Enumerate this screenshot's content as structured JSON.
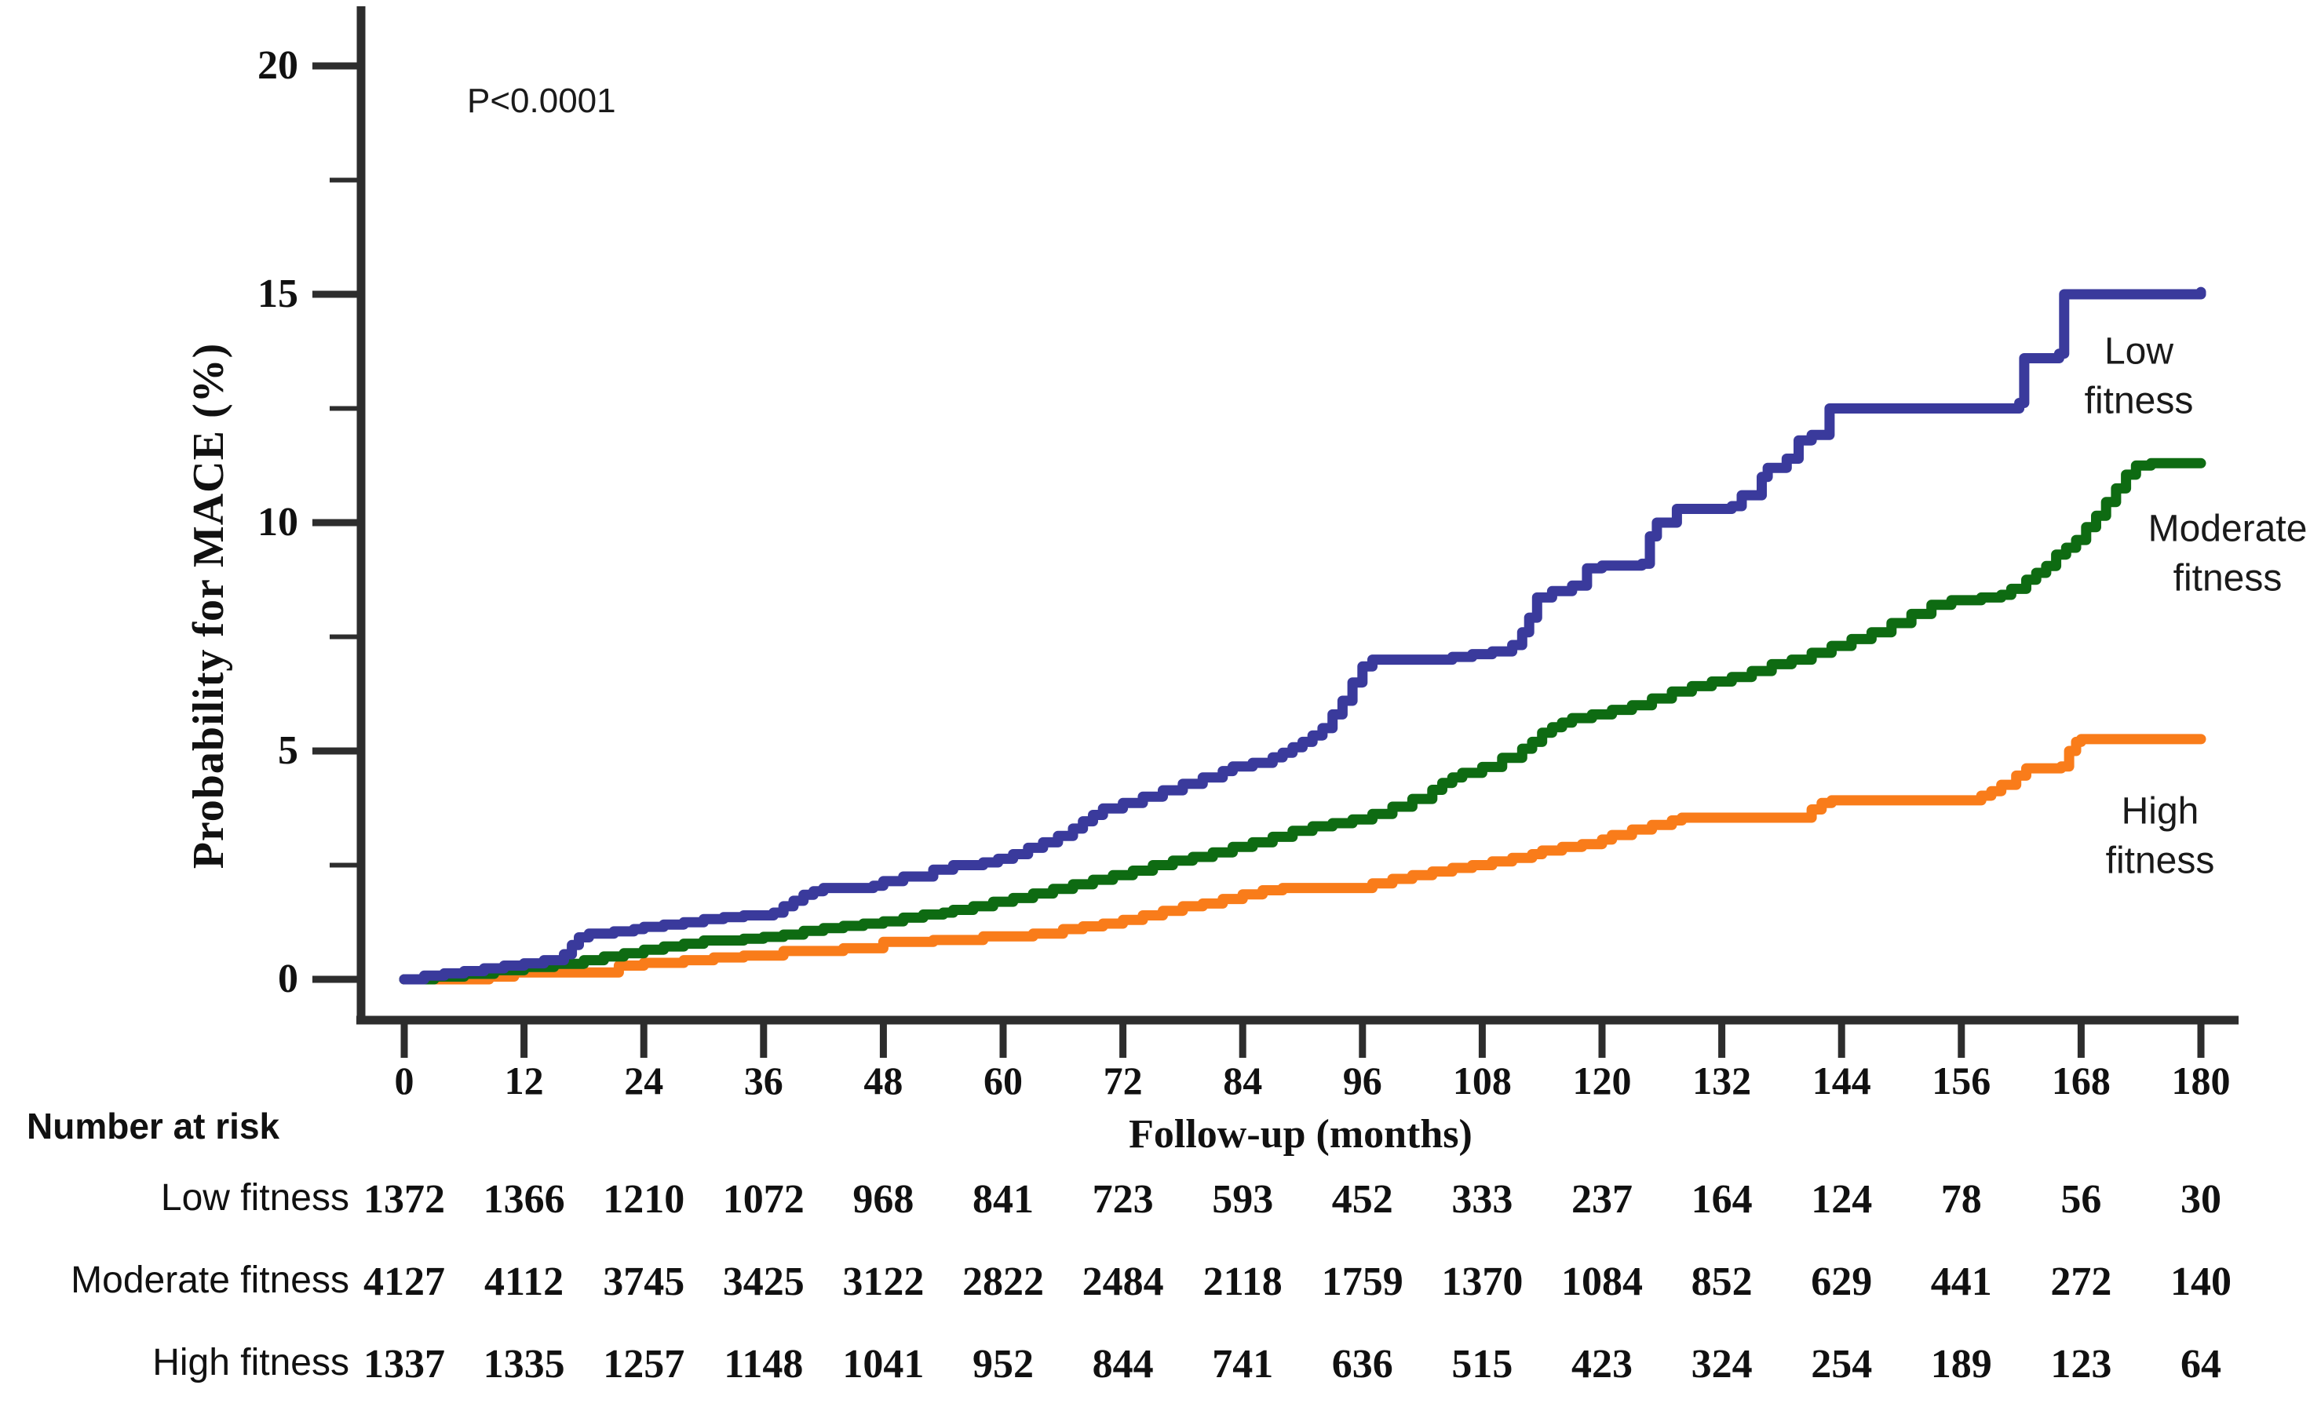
{
  "annotations": {
    "p_value": "P<0.0001"
  },
  "risk_table": {
    "heading": "Number at risk",
    "rows": [
      {
        "label": "Low fitness",
        "values": [
          1372,
          1366,
          1210,
          1072,
          968,
          841,
          723,
          593,
          452,
          333,
          237,
          164,
          124,
          78,
          56,
          30
        ]
      },
      {
        "label": "Moderate fitness",
        "values": [
          4127,
          4112,
          3745,
          3425,
          3122,
          2822,
          2484,
          2118,
          1759,
          1370,
          1084,
          852,
          629,
          441,
          272,
          140
        ]
      },
      {
        "label": "High fitness",
        "values": [
          1337,
          1335,
          1257,
          1148,
          1041,
          952,
          844,
          741,
          636,
          515,
          423,
          324,
          254,
          189,
          123,
          64
        ]
      }
    ]
  },
  "chart_data": {
    "type": "line",
    "subtype": "kaplan-meier-step",
    "title": "",
    "xlabel": "Follow-up (months)",
    "ylabel": "Probability for MACE (%)",
    "xlim": [
      0,
      180
    ],
    "ylim": [
      0,
      20
    ],
    "xticks": [
      0,
      12,
      24,
      36,
      48,
      60,
      72,
      84,
      96,
      108,
      120,
      132,
      144,
      156,
      168,
      180
    ],
    "yticks": [
      0,
      5,
      10,
      15,
      20
    ],
    "yticks_minor": [
      2.5,
      7.5,
      12.5,
      17.5
    ],
    "grid": false,
    "legend_position": "end-of-line-labels",
    "axis_color": "#2d2d2d",
    "series": [
      {
        "name": "Low fitness",
        "label_lines": [
          "Low",
          "fitness"
        ],
        "color": "#3A3A9C",
        "data": [
          [
            0,
            0
          ],
          [
            2,
            0.08
          ],
          [
            4,
            0.13
          ],
          [
            6,
            0.18
          ],
          [
            8,
            0.24
          ],
          [
            10,
            0.3
          ],
          [
            12,
            0.35
          ],
          [
            14,
            0.42
          ],
          [
            16,
            0.55
          ],
          [
            16.8,
            0.75
          ],
          [
            17.5,
            0.92
          ],
          [
            18.5,
            1.0
          ],
          [
            21,
            1.05
          ],
          [
            23,
            1.1
          ],
          [
            24,
            1.15
          ],
          [
            26,
            1.2
          ],
          [
            28,
            1.25
          ],
          [
            30,
            1.32
          ],
          [
            32,
            1.36
          ],
          [
            34,
            1.4
          ],
          [
            37,
            1.46
          ],
          [
            38,
            1.6
          ],
          [
            39,
            1.72
          ],
          [
            40,
            1.85
          ],
          [
            41,
            1.93
          ],
          [
            42,
            2.0
          ],
          [
            47,
            2.05
          ],
          [
            48,
            2.15
          ],
          [
            50,
            2.25
          ],
          [
            53,
            2.4
          ],
          [
            55,
            2.5
          ],
          [
            58,
            2.56
          ],
          [
            59.5,
            2.64
          ],
          [
            61,
            2.74
          ],
          [
            62.5,
            2.88
          ],
          [
            64,
            3.0
          ],
          [
            65.5,
            3.14
          ],
          [
            67,
            3.3
          ],
          [
            68,
            3.46
          ],
          [
            69,
            3.6
          ],
          [
            70,
            3.74
          ],
          [
            72,
            3.86
          ],
          [
            74,
            4.0
          ],
          [
            76,
            4.14
          ],
          [
            78,
            4.28
          ],
          [
            80,
            4.42
          ],
          [
            82,
            4.56
          ],
          [
            83,
            4.66
          ],
          [
            85,
            4.74
          ],
          [
            87,
            4.86
          ],
          [
            88,
            4.96
          ],
          [
            89,
            5.08
          ],
          [
            90,
            5.2
          ],
          [
            91,
            5.34
          ],
          [
            92,
            5.5
          ],
          [
            93,
            5.8
          ],
          [
            94,
            6.1
          ],
          [
            95,
            6.5
          ],
          [
            96,
            6.85
          ],
          [
            97,
            7.0
          ],
          [
            104,
            7.0
          ],
          [
            105,
            7.06
          ],
          [
            107,
            7.12
          ],
          [
            109,
            7.18
          ],
          [
            111,
            7.32
          ],
          [
            112,
            7.6
          ],
          [
            112.7,
            7.92
          ],
          [
            113.5,
            8.36
          ],
          [
            115,
            8.5
          ],
          [
            117,
            8.62
          ],
          [
            118.5,
            9.0
          ],
          [
            120,
            9.06
          ],
          [
            124,
            9.1
          ],
          [
            124.8,
            9.7
          ],
          [
            125.5,
            10.0
          ],
          [
            127.5,
            10.3
          ],
          [
            133,
            10.36
          ],
          [
            134,
            10.6
          ],
          [
            136,
            11.0
          ],
          [
            136.6,
            11.2
          ],
          [
            138.5,
            11.4
          ],
          [
            139.7,
            11.8
          ],
          [
            141,
            11.92
          ],
          [
            142.8,
            12.5
          ],
          [
            161,
            12.5
          ],
          [
            161.8,
            12.62
          ],
          [
            162.3,
            13.6
          ],
          [
            165.8,
            13.7
          ],
          [
            166.3,
            15.0
          ],
          [
            180,
            15.05
          ]
        ]
      },
      {
        "name": "Moderate fitness",
        "label_lines": [
          "Moderate",
          "fitness"
        ],
        "color": "#0E6B12",
        "data": [
          [
            0,
            0
          ],
          [
            3,
            0.06
          ],
          [
            6,
            0.12
          ],
          [
            9,
            0.2
          ],
          [
            12,
            0.27
          ],
          [
            15,
            0.34
          ],
          [
            18,
            0.42
          ],
          [
            20,
            0.5
          ],
          [
            22,
            0.57
          ],
          [
            24,
            0.65
          ],
          [
            26,
            0.72
          ],
          [
            28,
            0.78
          ],
          [
            30,
            0.85
          ],
          [
            34,
            0.89
          ],
          [
            36,
            0.93
          ],
          [
            38,
            0.98
          ],
          [
            40,
            1.06
          ],
          [
            42,
            1.12
          ],
          [
            44,
            1.17
          ],
          [
            46,
            1.22
          ],
          [
            48,
            1.27
          ],
          [
            50,
            1.35
          ],
          [
            52,
            1.42
          ],
          [
            54,
            1.46
          ],
          [
            55,
            1.52
          ],
          [
            57,
            1.6
          ],
          [
            59,
            1.7
          ],
          [
            61,
            1.78
          ],
          [
            63,
            1.88
          ],
          [
            65,
            1.98
          ],
          [
            67,
            2.08
          ],
          [
            69,
            2.18
          ],
          [
            71,
            2.28
          ],
          [
            73,
            2.38
          ],
          [
            75,
            2.5
          ],
          [
            77,
            2.6
          ],
          [
            79,
            2.68
          ],
          [
            81,
            2.78
          ],
          [
            83,
            2.9
          ],
          [
            85,
            3.0
          ],
          [
            87,
            3.12
          ],
          [
            89,
            3.25
          ],
          [
            91,
            3.35
          ],
          [
            93,
            3.42
          ],
          [
            95,
            3.5
          ],
          [
            97,
            3.62
          ],
          [
            99,
            3.78
          ],
          [
            101,
            3.95
          ],
          [
            103,
            4.15
          ],
          [
            104,
            4.3
          ],
          [
            105,
            4.42
          ],
          [
            106,
            4.52
          ],
          [
            108,
            4.65
          ],
          [
            110,
            4.85
          ],
          [
            112,
            5.05
          ],
          [
            113,
            5.2
          ],
          [
            114,
            5.4
          ],
          [
            115,
            5.52
          ],
          [
            116,
            5.62
          ],
          [
            117,
            5.72
          ],
          [
            119,
            5.8
          ],
          [
            121,
            5.9
          ],
          [
            123,
            6.0
          ],
          [
            125,
            6.15
          ],
          [
            127,
            6.3
          ],
          [
            129,
            6.42
          ],
          [
            131,
            6.52
          ],
          [
            133,
            6.62
          ],
          [
            135,
            6.75
          ],
          [
            137,
            6.9
          ],
          [
            139,
            7.0
          ],
          [
            141,
            7.15
          ],
          [
            143,
            7.3
          ],
          [
            145,
            7.45
          ],
          [
            147,
            7.6
          ],
          [
            149,
            7.8
          ],
          [
            151,
            8.0
          ],
          [
            153,
            8.2
          ],
          [
            155,
            8.3
          ],
          [
            158,
            8.36
          ],
          [
            160,
            8.42
          ],
          [
            161,
            8.55
          ],
          [
            162.5,
            8.75
          ],
          [
            163.5,
            8.9
          ],
          [
            164.5,
            9.05
          ],
          [
            165.5,
            9.3
          ],
          [
            166.5,
            9.45
          ],
          [
            167.5,
            9.62
          ],
          [
            168.5,
            9.9
          ],
          [
            169.5,
            10.15
          ],
          [
            170.5,
            10.45
          ],
          [
            171.5,
            10.75
          ],
          [
            172.5,
            11.05
          ],
          [
            173.5,
            11.25
          ],
          [
            175,
            11.3
          ],
          [
            180,
            11.3
          ]
        ]
      },
      {
        "name": "High fitness",
        "label_lines": [
          "High",
          "fitness"
        ],
        "color": "#F97C1A",
        "data": [
          [
            0,
            0
          ],
          [
            8.5,
            0.06
          ],
          [
            11,
            0.15
          ],
          [
            21.5,
            0.3
          ],
          [
            24,
            0.36
          ],
          [
            28,
            0.42
          ],
          [
            31,
            0.48
          ],
          [
            34,
            0.52
          ],
          [
            38,
            0.62
          ],
          [
            44,
            0.68
          ],
          [
            48,
            0.82
          ],
          [
            53,
            0.86
          ],
          [
            58,
            0.94
          ],
          [
            63,
            1.0
          ],
          [
            66,
            1.1
          ],
          [
            68,
            1.16
          ],
          [
            70,
            1.22
          ],
          [
            72,
            1.3
          ],
          [
            74,
            1.4
          ],
          [
            76,
            1.5
          ],
          [
            78,
            1.6
          ],
          [
            80,
            1.66
          ],
          [
            82,
            1.76
          ],
          [
            84,
            1.86
          ],
          [
            86,
            1.95
          ],
          [
            88,
            2.0
          ],
          [
            96,
            2.0
          ],
          [
            97,
            2.1
          ],
          [
            99,
            2.2
          ],
          [
            101,
            2.28
          ],
          [
            103,
            2.36
          ],
          [
            105,
            2.44
          ],
          [
            107,
            2.5
          ],
          [
            109,
            2.58
          ],
          [
            111,
            2.66
          ],
          [
            113,
            2.74
          ],
          [
            114,
            2.82
          ],
          [
            116,
            2.9
          ],
          [
            118,
            2.96
          ],
          [
            120,
            3.06
          ],
          [
            121,
            3.16
          ],
          [
            123,
            3.28
          ],
          [
            125,
            3.38
          ],
          [
            127,
            3.48
          ],
          [
            128,
            3.54
          ],
          [
            140,
            3.54
          ],
          [
            141,
            3.72
          ],
          [
            142,
            3.86
          ],
          [
            143,
            3.92
          ],
          [
            157,
            3.92
          ],
          [
            158,
            4.02
          ],
          [
            159,
            4.12
          ],
          [
            160,
            4.26
          ],
          [
            161.5,
            4.46
          ],
          [
            162.5,
            4.62
          ],
          [
            166,
            4.66
          ],
          [
            166.8,
            5.0
          ],
          [
            167.5,
            5.2
          ],
          [
            168,
            5.26
          ],
          [
            180,
            5.26
          ]
        ]
      }
    ]
  }
}
